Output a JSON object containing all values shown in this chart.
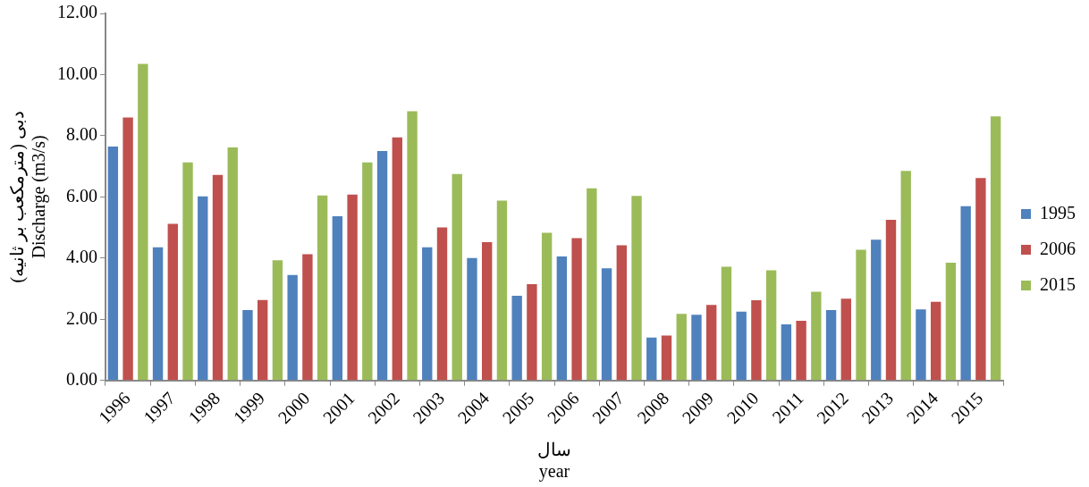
{
  "chart_data": {
    "type": "bar",
    "ylabel": "دبی (مترمکعب بر ثانیه)\nDischarge (m3/s)",
    "xlabel": "سال\nyear",
    "categories": [
      "1996",
      "1997",
      "1998",
      "1999",
      "2000",
      "2001",
      "2002",
      "2003",
      "2004",
      "2005",
      "2006",
      "2007",
      "2008",
      "2009",
      "2010",
      "2011",
      "2012",
      "2013",
      "2014",
      "2015"
    ],
    "series": [
      {
        "name": "1995",
        "color": "#4f81bd",
        "values": [
          7.65,
          4.35,
          6.02,
          2.3,
          3.45,
          5.37,
          7.5,
          4.35,
          4.0,
          2.77,
          4.05,
          3.67,
          1.4,
          2.15,
          2.25,
          1.83,
          2.3,
          4.6,
          2.32,
          5.7
        ]
      },
      {
        "name": "2006",
        "color": "#c0504d",
        "values": [
          8.6,
          5.12,
          6.72,
          2.63,
          4.13,
          6.08,
          7.95,
          5.0,
          4.52,
          3.15,
          4.65,
          4.42,
          1.47,
          2.47,
          2.62,
          1.95,
          2.67,
          5.25,
          2.57,
          6.62
        ]
      },
      {
        "name": "2015",
        "color": "#9bbb59",
        "values": [
          10.35,
          7.13,
          7.62,
          3.93,
          6.05,
          7.13,
          8.8,
          6.75,
          5.88,
          4.83,
          6.28,
          6.03,
          2.18,
          3.72,
          3.6,
          2.9,
          4.27,
          6.85,
          3.85,
          8.63
        ]
      }
    ],
    "ylim": [
      0,
      12
    ],
    "yticks": [
      {
        "value": 0,
        "label": "0.00"
      },
      {
        "value": 2,
        "label": "2.00"
      },
      {
        "value": 4,
        "label": "4.00"
      },
      {
        "value": 6,
        "label": "6.00"
      },
      {
        "value": 8,
        "label": "8.00"
      },
      {
        "value": 10,
        "label": "10.00"
      },
      {
        "value": 12,
        "label": "12.00"
      }
    ],
    "grid": false,
    "legend": "right"
  }
}
